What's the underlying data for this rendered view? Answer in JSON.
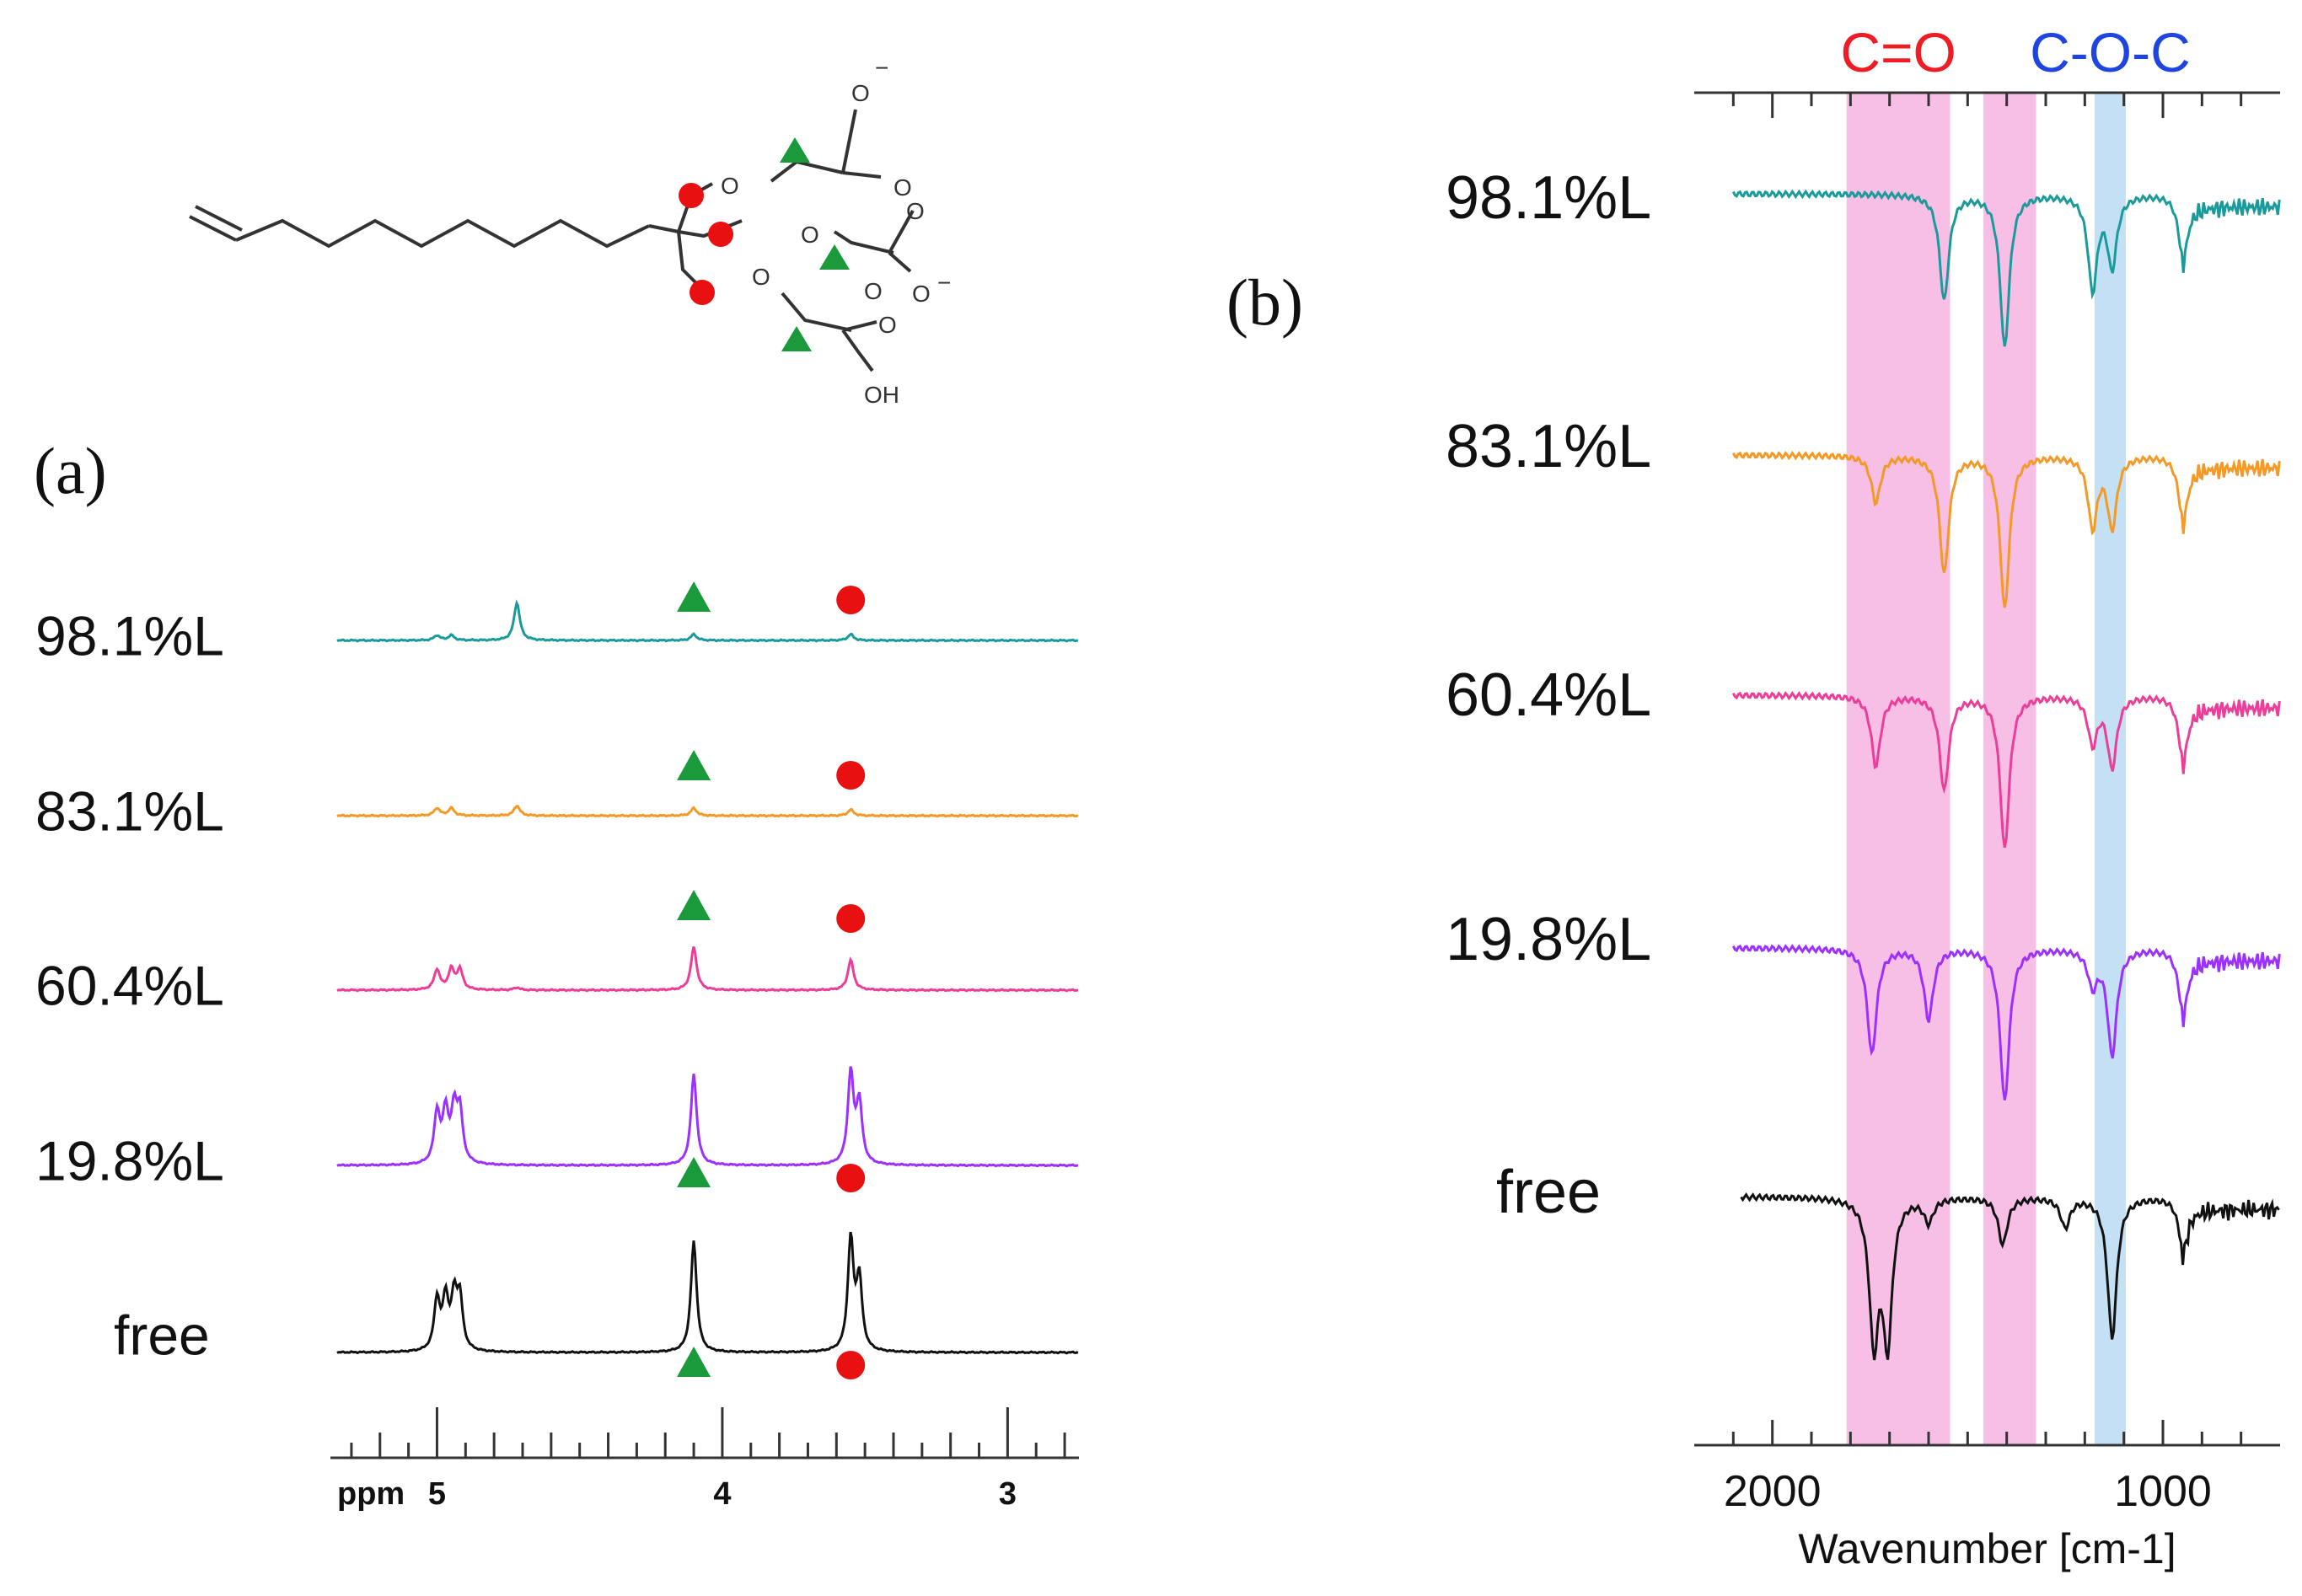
{
  "panel_a": {
    "label": "(a)"
  },
  "panel_b": {
    "label": "(b)"
  },
  "molecule": {
    "labels": [
      "O",
      "O",
      "O",
      "O",
      "O",
      "O",
      "O",
      "O",
      "O",
      "OH"
    ],
    "charges": [
      "−",
      "−"
    ]
  },
  "chart_data": [
    {
      "type": "line",
      "title": "",
      "xlabel": "ppm",
      "ylabel": "",
      "xlim": [
        5.35,
        2.75
      ],
      "x_reversed": true,
      "x_ticks_major": [
        5,
        4,
        3
      ],
      "x_tick_labels": [
        "5",
        "4",
        "3"
      ],
      "y_offset_stacked": true,
      "series": [
        {
          "name": "98.1%L",
          "color": "#1a9a9a",
          "peaks_ppm": [
            5.0,
            4.95,
            4.72,
            4.1,
            3.55
          ],
          "relative_heights": [
            0.1,
            0.1,
            0.75,
            0.12,
            0.12
          ]
        },
        {
          "name": "83.1%L",
          "color": "#f39a26",
          "peaks_ppm": [
            5.0,
            4.95,
            4.72,
            4.1,
            3.55
          ],
          "relative_heights": [
            0.15,
            0.15,
            0.2,
            0.15,
            0.12
          ]
        },
        {
          "name": "60.4%L",
          "color": "#ec3d98",
          "peaks_ppm": [
            5.0,
            4.95,
            4.92,
            4.72,
            4.1,
            3.55
          ],
          "relative_heights": [
            0.4,
            0.4,
            0.4,
            0.05,
            0.85,
            0.6
          ]
        },
        {
          "name": "19.8%L",
          "color": "#9b30ff",
          "peaks_ppm": [
            5.0,
            4.97,
            4.94,
            4.92,
            4.1,
            3.55,
            3.52
          ],
          "relative_heights": [
            1.0,
            1.0,
            1.0,
            1.0,
            1.8,
            1.8,
            1.2
          ]
        },
        {
          "name": "free",
          "color": "#111111",
          "peaks_ppm": [
            5.0,
            4.97,
            4.94,
            4.92,
            4.1,
            3.55,
            3.52
          ],
          "relative_heights": [
            1.0,
            1.0,
            1.0,
            1.0,
            2.2,
            2.2,
            1.4
          ]
        }
      ],
      "markers": {
        "triangle_ppm": 4.1,
        "circle_ppm": 3.55
      }
    },
    {
      "type": "line",
      "title": "",
      "xlabel": "Wavenumber [cm-1]",
      "ylabel": "",
      "xlim": [
        2200,
        700
      ],
      "x_reversed": true,
      "x_ticks_major": [
        2000,
        1000
      ],
      "x_tick_labels": [
        "2000",
        "1000"
      ],
      "y_offset_stacked": true,
      "highlight_bands": [
        {
          "label": "C=O",
          "label_color": "#ee1c25",
          "from": 1810,
          "to": 1545,
          "color": "#f7bfe6"
        },
        {
          "label": "",
          "from": 1460,
          "to": 1325,
          "color": "#f7bfe6"
        },
        {
          "label": "C-O-C",
          "label_color": "#1f45e0",
          "from": 1175,
          "to": 1095,
          "color": "#c4e0f5"
        }
      ],
      "series": [
        {
          "name": "98.1%L",
          "color": "#1a9a9a",
          "bands_cm": [
            1560,
            1405,
            1180,
            1130,
            950
          ],
          "depths": [
            0.9,
            1.3,
            0.8,
            0.6,
            0.5
          ]
        },
        {
          "name": "83.1%L",
          "color": "#f39a26",
          "bands_cm": [
            1735,
            1560,
            1405,
            1180,
            1130,
            950
          ],
          "depths": [
            0.4,
            1.0,
            1.3,
            0.6,
            0.6,
            0.5
          ]
        },
        {
          "name": "60.4%L",
          "color": "#ec3d98",
          "bands_cm": [
            1735,
            1560,
            1405,
            1180,
            1130,
            950
          ],
          "depths": [
            0.6,
            0.8,
            1.3,
            0.4,
            0.6,
            0.5
          ]
        },
        {
          "name": "19.8%L",
          "color": "#9b30ff",
          "bands_cm": [
            1745,
            1600,
            1405,
            1180,
            1130,
            950
          ],
          "depths": [
            0.9,
            0.6,
            1.3,
            0.3,
            0.9,
            0.5
          ]
        },
        {
          "name": "free",
          "color": "#111111",
          "bands_cm": [
            1740,
            1705,
            1600,
            1410,
            1250,
            1130,
            950
          ],
          "depths": [
            1.2,
            1.2,
            0.2,
            0.4,
            0.25,
            1.2,
            0.4
          ]
        }
      ]
    }
  ]
}
